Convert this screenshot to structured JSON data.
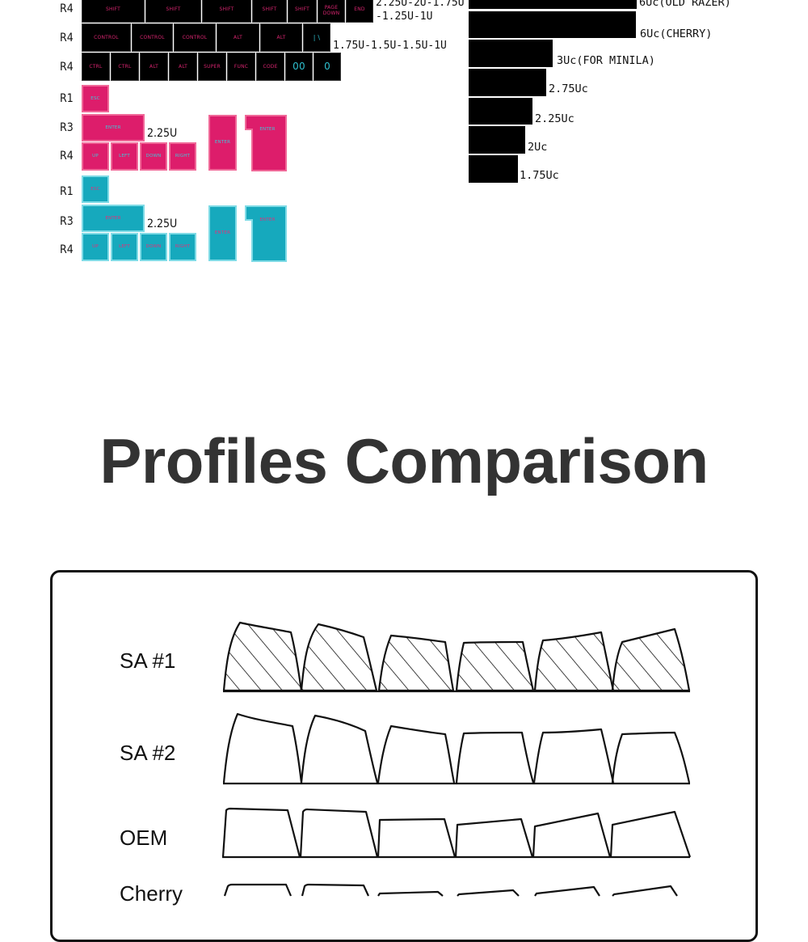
{
  "rows": {
    "r4_a": "R4",
    "r4_b": "R4",
    "r4_c": "R4",
    "pink_r1": "R1",
    "pink_r3": "R3",
    "pink_r4": "R4",
    "cyan_r1": "R1",
    "cyan_r3": "R3",
    "cyan_r4": "R4"
  },
  "row1_keys": [
    "SHIFT",
    "SHIFT",
    "SHIFT",
    "SHIFT",
    "SHIFT",
    "PAGE DOWN",
    "END"
  ],
  "row2_keys": [
    "CONTROL",
    "CONTROL",
    "CONTROL",
    "ALT",
    "ALT",
    "| \\"
  ],
  "row3_keys": [
    "CTRL",
    "CTRL",
    "ALT",
    "ALT",
    "SUPER",
    "FUNC",
    "CODE",
    "00",
    "0"
  ],
  "notes": {
    "row1_line1": "2.25U-2U-1.75U",
    "row1_line2": "-1.25U-1U",
    "row2": "1.75U-1.5U-1.5U-1U"
  },
  "spacebars": [
    "6Uc(OLD RAZER)",
    "6Uc(CHERRY)",
    "3Uc(FOR MINILA)",
    "2.75Uc",
    "2.25Uc",
    "2Uc",
    "1.75Uc"
  ],
  "pink_keys": {
    "esc": "ESC",
    "enter": "ENTER",
    "enter_size": "2.25U",
    "enter_vertical": "ENTER",
    "enter_iso": "ENTER",
    "arrows": [
      "UP",
      "LEFT",
      "DOWN",
      "RIGHT"
    ]
  },
  "cyan_keys": {
    "esc": "ESC",
    "enter": "ENTER",
    "enter_size": "2.25U",
    "enter_vertical": "ENTER",
    "enter_iso": "ENTER",
    "arrows": [
      "UP",
      "LEFT",
      "DOWN",
      "RIGHT"
    ]
  },
  "heading": "Profiles Comparison",
  "profiles": [
    "SA #1",
    "SA #2",
    "OEM",
    "Cherry"
  ],
  "colors": {
    "black_key": "#000000",
    "legend_pink": "#d7256f",
    "pink_key": "#dd1d6b",
    "cyan_key": "#16a9bd",
    "heading": "#333333"
  }
}
